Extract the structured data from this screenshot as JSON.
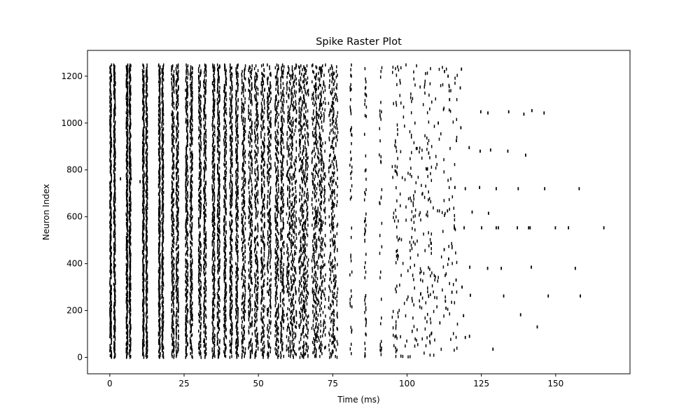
{
  "chart_data": {
    "type": "scatter",
    "title": "Spike Raster Plot",
    "xlabel": "Time (ms)",
    "ylabel": "Neuron Index",
    "xlim": [
      -7.5,
      175
    ],
    "ylim": [
      -70,
      1310
    ],
    "xticks": [
      "0",
      "25",
      "50",
      "75",
      "100",
      "125",
      "150"
    ],
    "yticks": [
      "0",
      "200",
      "400",
      "600",
      "800",
      "1000",
      "1200"
    ],
    "grid": false,
    "marker": "|",
    "n_neurons": 1250,
    "color": "#000000",
    "synchronous_volleys_ms": [
      0.3,
      1.6,
      5.8,
      6.8,
      11.3,
      12.4,
      16.7,
      17.8,
      21.2,
      22.7,
      25.9,
      27.4,
      30.3,
      32.0,
      34.9,
      36.6,
      38.8,
      40.8,
      42.8,
      45.0,
      47.3,
      49.3,
      51.5,
      53.6,
      56.2,
      58.0,
      60.3,
      62.0,
      64.4,
      66.0,
      68.8,
      70.3,
      71.6,
      74.6,
      75.7,
      81.1,
      86.0,
      91.1,
      96.4,
      101.9,
      107.5
    ],
    "isolated_spikes": [
      {
        "t": 3.6,
        "neuron": 762
      },
      {
        "t": 7.2,
        "neuron": 762
      },
      {
        "t": 10.2,
        "neuron": 750
      },
      {
        "t": 118.3,
        "neuron": 1230
      },
      {
        "t": 124.8,
        "neuron": 1048
      },
      {
        "t": 127.2,
        "neuron": 1043
      },
      {
        "t": 134.2,
        "neuron": 1048
      },
      {
        "t": 139.3,
        "neuron": 1038
      },
      {
        "t": 142.0,
        "neuron": 1053
      },
      {
        "t": 146.1,
        "neuron": 1043
      },
      {
        "t": 120.9,
        "neuron": 895
      },
      {
        "t": 124.6,
        "neuron": 880
      },
      {
        "t": 128.1,
        "neuron": 885
      },
      {
        "t": 133.9,
        "neuron": 880
      },
      {
        "t": 139.9,
        "neuron": 863
      },
      {
        "t": 116.1,
        "neuron": 725
      },
      {
        "t": 119.6,
        "neuron": 720
      },
      {
        "t": 124.4,
        "neuron": 725
      },
      {
        "t": 130.0,
        "neuron": 720
      },
      {
        "t": 137.4,
        "neuron": 720
      },
      {
        "t": 146.3,
        "neuron": 720
      },
      {
        "t": 157.9,
        "neuron": 720
      },
      {
        "t": 121.9,
        "neuron": 620
      },
      {
        "t": 127.4,
        "neuron": 615
      },
      {
        "t": 115.9,
        "neuron": 553
      },
      {
        "t": 119.2,
        "neuron": 553
      },
      {
        "t": 125.1,
        "neuron": 553
      },
      {
        "t": 130.0,
        "neuron": 553
      },
      {
        "t": 130.7,
        "neuron": 553
      },
      {
        "t": 137.1,
        "neuron": 553
      },
      {
        "t": 140.9,
        "neuron": 553
      },
      {
        "t": 141.4,
        "neuron": 553
      },
      {
        "t": 149.9,
        "neuron": 553
      },
      {
        "t": 154.3,
        "neuron": 553
      },
      {
        "t": 166.2,
        "neuron": 553
      },
      {
        "t": 121.1,
        "neuron": 385
      },
      {
        "t": 127.1,
        "neuron": 380
      },
      {
        "t": 131.7,
        "neuron": 380
      },
      {
        "t": 141.8,
        "neuron": 385
      },
      {
        "t": 156.6,
        "neuron": 380
      },
      {
        "t": 115.1,
        "neuron": 278
      },
      {
        "t": 121.3,
        "neuron": 265
      },
      {
        "t": 132.5,
        "neuron": 262
      },
      {
        "t": 147.5,
        "neuron": 262
      },
      {
        "t": 158.3,
        "neuron": 262
      },
      {
        "t": 119.0,
        "neuron": 178
      },
      {
        "t": 138.2,
        "neuron": 182
      },
      {
        "t": 143.8,
        "neuron": 130
      },
      {
        "t": 119.6,
        "neuron": 85
      },
      {
        "t": 121.0,
        "neuron": 90
      },
      {
        "t": 128.9,
        "neuron": 35
      },
      {
        "t": 112.6,
        "neuron": 1220
      },
      {
        "t": 113.8,
        "neuron": 1200
      },
      {
        "t": 117.9,
        "neuron": 1150
      },
      {
        "t": 114.3,
        "neuron": 1100
      },
      {
        "t": 110.5,
        "neuron": 1000
      },
      {
        "t": 118.1,
        "neuron": 980
      },
      {
        "t": 116.6,
        "neuron": 925
      },
      {
        "t": 113.6,
        "neuron": 625
      },
      {
        "t": 112.5,
        "neuron": 460
      },
      {
        "t": 114.0,
        "neuron": 420
      },
      {
        "t": 116.5,
        "neuron": 330
      },
      {
        "t": 118.5,
        "neuron": 300
      },
      {
        "t": 113.1,
        "neuron": 210
      },
      {
        "t": 112.9,
        "neuron": 240
      }
    ]
  }
}
